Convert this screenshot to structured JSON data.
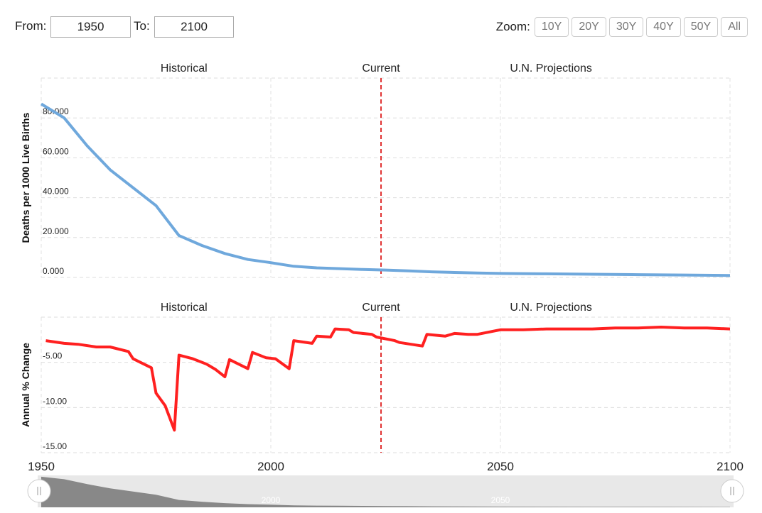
{
  "controls": {
    "from_label": "From:",
    "from_value": "1950",
    "to_label": "To:",
    "to_value": "2100",
    "zoom_label": "Zoom:",
    "zoom_buttons": [
      "10Y",
      "20Y",
      "30Y",
      "40Y",
      "50Y",
      "All"
    ]
  },
  "chart_data": [
    {
      "type": "line",
      "y_label": "Deaths per 1000 Live Births",
      "annotations": [
        "Historical",
        "Current",
        "U.N. Projections"
      ],
      "current_year": 2024,
      "x": [
        1950,
        1955,
        1960,
        1965,
        1970,
        1975,
        1980,
        1985,
        1990,
        1995,
        2000,
        2005,
        2010,
        2015,
        2020,
        2025,
        2030,
        2035,
        2040,
        2045,
        2050,
        2060,
        2070,
        2080,
        2090,
        2100
      ],
      "series": [
        {
          "name": "Deaths per 1000 Live Births",
          "color": "#6fa8dc",
          "values": [
            87,
            80,
            66,
            54,
            45,
            36,
            21,
            16,
            12,
            9,
            7.4,
            5.6,
            4.8,
            4.4,
            4.0,
            3.7,
            3.3,
            2.8,
            2.5,
            2.2,
            2.0,
            1.8,
            1.6,
            1.4,
            1.2,
            1.0
          ]
        }
      ],
      "xlim": [
        1950,
        2100
      ],
      "xticks": [
        1950,
        2000,
        2050,
        2100
      ],
      "ylim": [
        0,
        100
      ],
      "yticks": [
        {
          "value": 0,
          "label": "0.000"
        },
        {
          "value": 20,
          "label": "20.000"
        },
        {
          "value": 40,
          "label": "40.000"
        },
        {
          "value": 60,
          "label": "60.000"
        },
        {
          "value": 80,
          "label": "80.000"
        }
      ],
      "grid": true
    },
    {
      "type": "line",
      "y_label": "Annual % Change",
      "annotations": [
        "Historical",
        "Current",
        "U.N. Projections"
      ],
      "current_year": 2024,
      "x": [
        1951,
        1955,
        1958,
        1962,
        1965,
        1969,
        1970,
        1974,
        1975,
        1977,
        1979,
        1980,
        1983,
        1986,
        1988,
        1990,
        1991,
        1995,
        1996,
        1999,
        2001,
        2004,
        2005,
        2009,
        2010,
        2013,
        2014,
        2017,
        2018,
        2022,
        2023,
        2027,
        2028,
        2033,
        2034,
        2038,
        2040,
        2043,
        2045,
        2049,
        2050,
        2055,
        2060,
        2065,
        2070,
        2075,
        2080,
        2085,
        2090,
        2095,
        2100
      ],
      "series": [
        {
          "name": "Annual % Change",
          "color": "#ff2020",
          "values": [
            -2.6,
            -2.9,
            -3.0,
            -3.3,
            -3.3,
            -3.8,
            -4.6,
            -5.6,
            -8.4,
            -9.8,
            -12.5,
            -4.2,
            -4.6,
            -5.2,
            -5.8,
            -6.6,
            -4.7,
            -5.7,
            -3.9,
            -4.5,
            -4.6,
            -5.7,
            -2.6,
            -2.9,
            -2.1,
            -2.2,
            -1.3,
            -1.4,
            -1.7,
            -1.9,
            -2.2,
            -2.6,
            -2.8,
            -3.2,
            -1.9,
            -2.1,
            -1.8,
            -1.9,
            -1.9,
            -1.5,
            -1.4,
            -1.4,
            -1.3,
            -1.3,
            -1.3,
            -1.2,
            -1.2,
            -1.1,
            -1.2,
            -1.2,
            -1.3
          ]
        }
      ],
      "xlim": [
        1950,
        2100
      ],
      "xticks": [
        1950,
        2000,
        2050,
        2100
      ],
      "ylim": [
        -15,
        0
      ],
      "yticks": [
        {
          "value": -15,
          "label": "-15.00"
        },
        {
          "value": -10,
          "label": "-10.00"
        },
        {
          "value": -5,
          "label": "-5.00"
        }
      ],
      "grid": true
    }
  ]
}
